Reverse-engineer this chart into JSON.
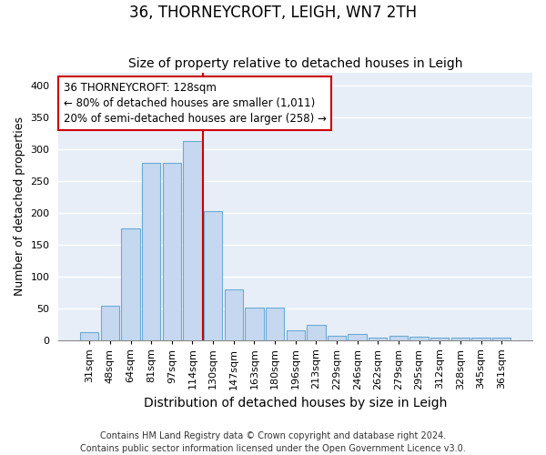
{
  "title": "36, THORNEYCROFT, LEIGH, WN7 2TH",
  "subtitle": "Size of property relative to detached houses in Leigh",
  "xlabel": "Distribution of detached houses by size in Leigh",
  "ylabel": "Number of detached properties",
  "categories": [
    "31sqm",
    "48sqm",
    "64sqm",
    "81sqm",
    "97sqm",
    "114sqm",
    "130sqm",
    "147sqm",
    "163sqm",
    "180sqm",
    "196sqm",
    "213sqm",
    "229sqm",
    "246sqm",
    "262sqm",
    "279sqm",
    "295sqm",
    "312sqm",
    "328sqm",
    "345sqm",
    "361sqm"
  ],
  "values": [
    12,
    53,
    175,
    278,
    278,
    312,
    202,
    80,
    51,
    51,
    15,
    24,
    6,
    9,
    4,
    6,
    5,
    3,
    3,
    3,
    3
  ],
  "bar_color": "#c5d8f0",
  "bar_edge_color": "#6aaad4",
  "vline_x": 5.5,
  "vline_color": "#cc0000",
  "annotation_line1": "36 THORNEYCROFT: 128sqm",
  "annotation_line2": "← 80% of detached houses are smaller (1,011)",
  "annotation_line3": "20% of semi-detached houses are larger (258) →",
  "annotation_box_color": "#ffffff",
  "annotation_box_edge_color": "#cc0000",
  "ylim": [
    0,
    420
  ],
  "background_color": "#e8eef8",
  "grid_color": "#ffffff",
  "footer": "Contains HM Land Registry data © Crown copyright and database right 2024.\nContains public sector information licensed under the Open Government Licence v3.0.",
  "title_fontsize": 12,
  "subtitle_fontsize": 10,
  "xlabel_fontsize": 10,
  "ylabel_fontsize": 9,
  "tick_fontsize": 8,
  "annotation_fontsize": 8.5,
  "footer_fontsize": 7
}
